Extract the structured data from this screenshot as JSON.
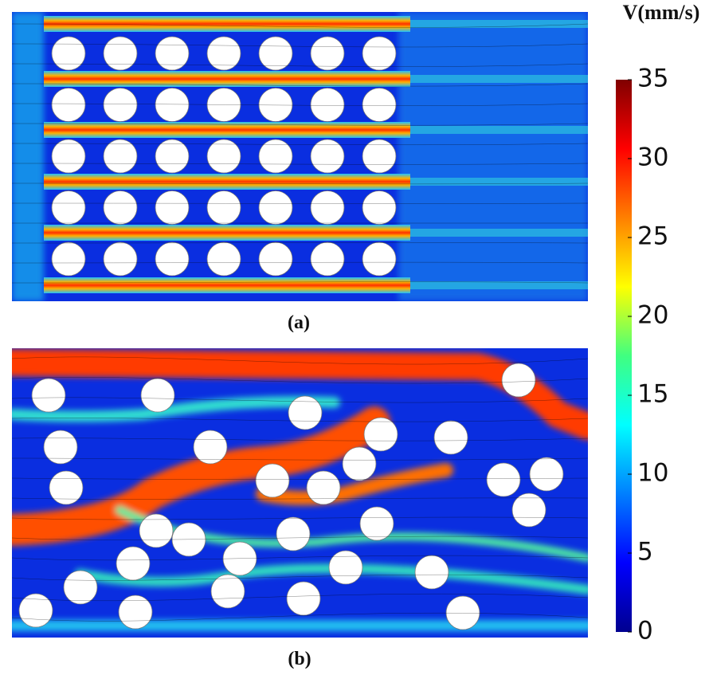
{
  "colorbar": {
    "title": "V(mm/s)",
    "lim": [
      0,
      35
    ],
    "ticks": [
      0,
      5,
      10,
      15,
      20,
      25,
      30,
      35
    ]
  },
  "panels": [
    {
      "label": "(a)"
    },
    {
      "label": "(b)"
    }
  ]
}
